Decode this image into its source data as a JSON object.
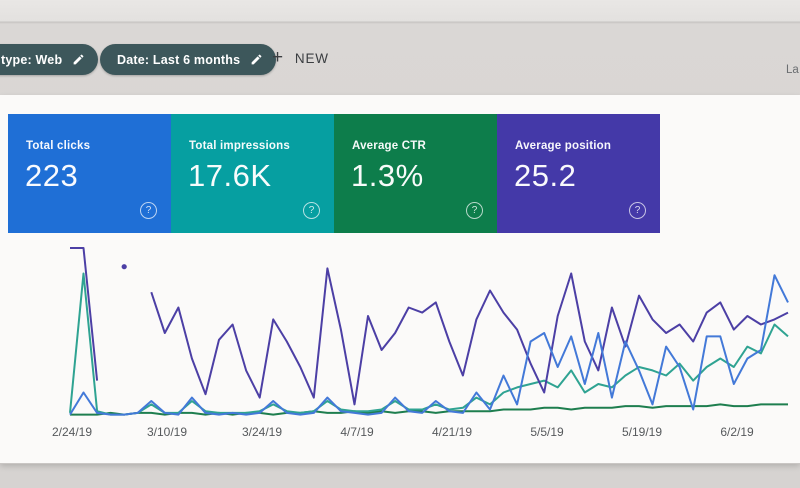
{
  "toolbar": {
    "chips": [
      {
        "label": "type: Web"
      },
      {
        "label": "Date: Last 6 months"
      }
    ],
    "new_button": {
      "plus": "+",
      "label": "NEW"
    },
    "right_clipped_text": "La"
  },
  "cards": [
    {
      "label": "Total clicks",
      "value": "223",
      "color": "#1f6fd6",
      "help_icon": "?"
    },
    {
      "label": "Total impressions",
      "value": "17.6K",
      "color": "#069fa1",
      "help_icon": "?"
    },
    {
      "label": "Average CTR",
      "value": "1.3%",
      "color": "#0d7d4b",
      "help_icon": "?"
    },
    {
      "label": "Average position",
      "value": "25.2",
      "color": "#4439a8",
      "help_icon": "?"
    }
  ],
  "chart_data": {
    "type": "line",
    "title": "",
    "xlabel": "",
    "ylabel": "",
    "x_labels": [
      "2/24/19",
      "3/10/19",
      "3/24/19",
      "4/7/19",
      "4/21/19",
      "5/5/19",
      "5/19/19",
      "6/2/19"
    ],
    "grid": false,
    "legend_position": "none",
    "ylim": [
      0,
      100
    ],
    "y_units": "percent of plot height (no y-axis shown in UI; values estimated from pixels)",
    "series": [
      {
        "name": "Average position",
        "color": "#1e7e4f",
        "values": [
          2,
          2,
          2,
          3,
          2,
          3,
          3,
          2,
          3,
          3,
          2,
          3,
          2,
          3,
          3,
          2,
          3,
          3,
          4,
          3,
          3,
          4,
          3,
          4,
          3,
          4,
          4,
          3,
          4,
          4,
          4,
          4,
          5,
          5,
          5,
          6,
          6,
          5,
          6,
          6,
          6,
          7,
          7,
          6,
          7,
          7,
          7,
          7,
          8,
          7,
          7,
          8,
          8,
          8
        ]
      },
      {
        "name": "Average CTR",
        "color": "#2fa392",
        "values": [
          3,
          85,
          4,
          2,
          2,
          3,
          8,
          3,
          3,
          10,
          4,
          3,
          3,
          3,
          4,
          8,
          4,
          3,
          4,
          10,
          5,
          4,
          4,
          5,
          10,
          5,
          5,
          8,
          5,
          6,
          12,
          8,
          15,
          18,
          20,
          22,
          18,
          28,
          15,
          20,
          18,
          25,
          30,
          28,
          25,
          32,
          22,
          30,
          35,
          30,
          42,
          38,
          55,
          48
        ]
      },
      {
        "name": "Total impressions",
        "color": "#4c3fa5",
        "values": [
          100,
          100,
          22,
          null,
          89,
          null,
          74,
          50,
          65,
          35,
          14,
          46,
          55,
          28,
          12,
          58,
          45,
          30,
          12,
          88,
          52,
          8,
          60,
          40,
          50,
          65,
          62,
          68,
          45,
          25,
          58,
          75,
          62,
          52,
          32,
          15,
          60,
          85,
          45,
          28,
          65,
          42,
          72,
          58,
          50,
          55,
          45,
          62,
          68,
          52,
          60,
          55,
          58,
          62
        ]
      },
      {
        "name": "Total clicks",
        "color": "#4379d8",
        "values": [
          2,
          15,
          3,
          2,
          2,
          3,
          10,
          3,
          2,
          12,
          3,
          2,
          3,
          2,
          3,
          10,
          3,
          2,
          3,
          12,
          4,
          3,
          2,
          3,
          12,
          4,
          3,
          10,
          4,
          3,
          15,
          5,
          25,
          8,
          45,
          50,
          30,
          48,
          20,
          50,
          12,
          45,
          28,
          8,
          42,
          30,
          5,
          48,
          48,
          20,
          35,
          40,
          84,
          68
        ]
      }
    ]
  }
}
